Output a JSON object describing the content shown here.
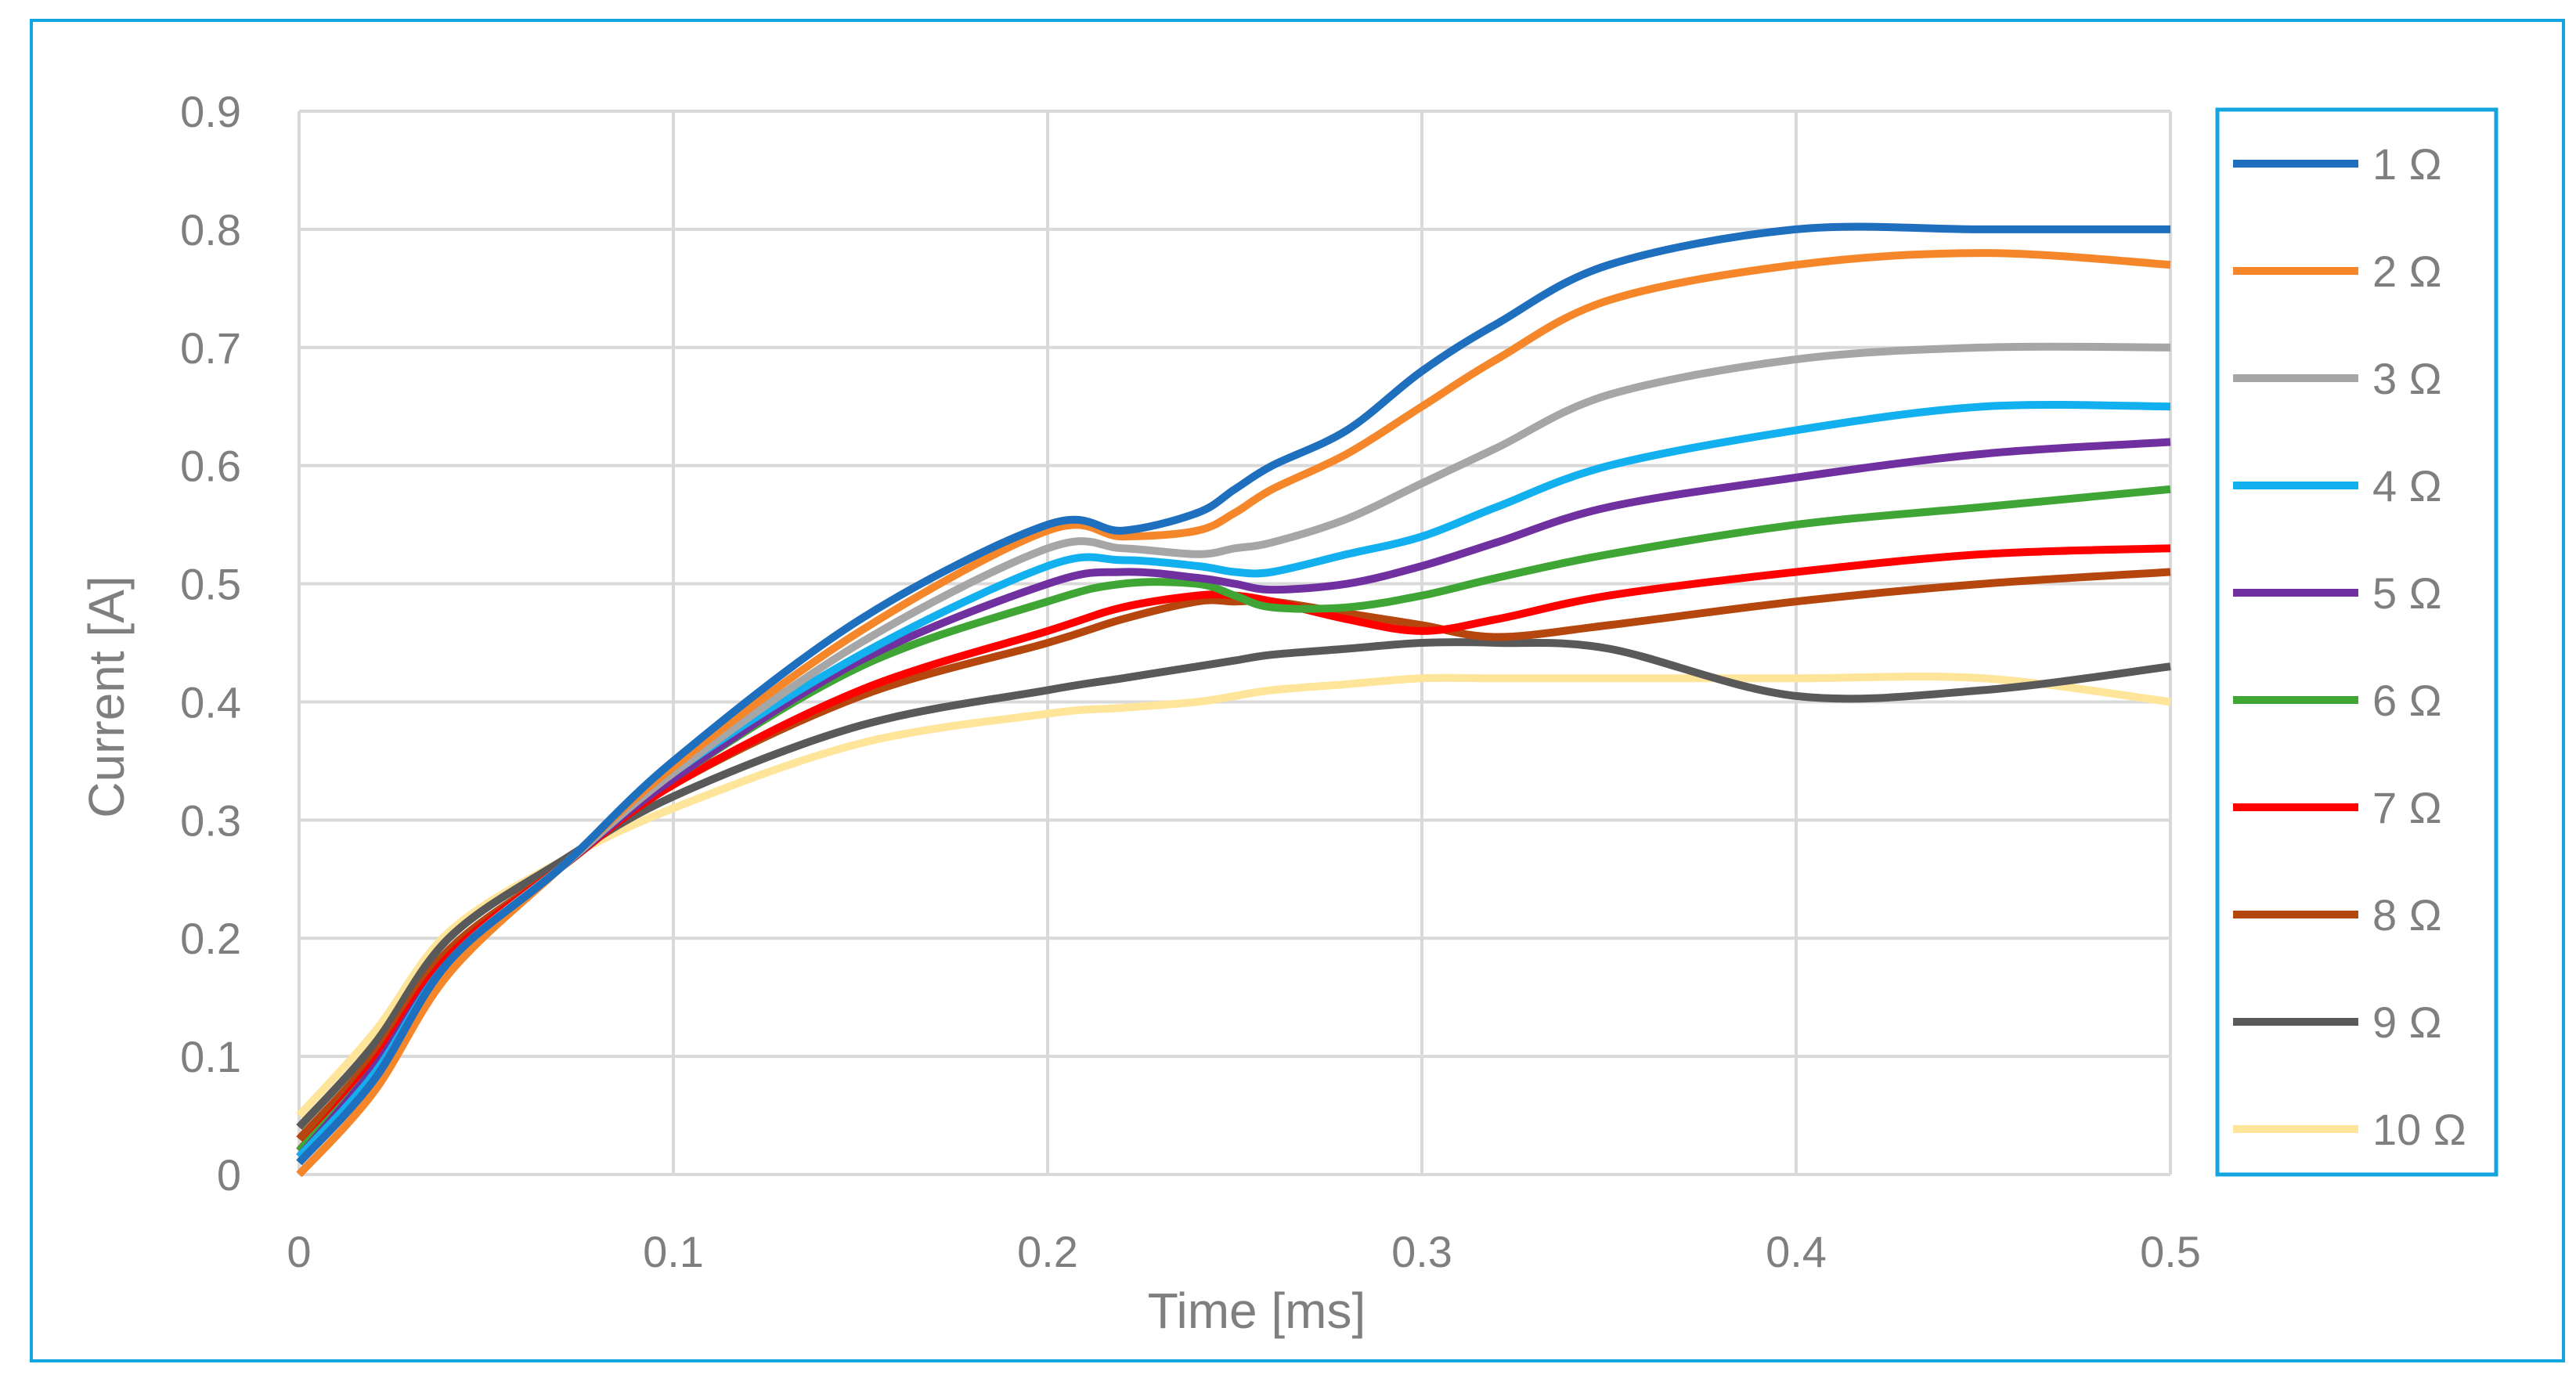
{
  "chart_data": {
    "type": "line",
    "title": "",
    "xlabel": "Time [ms]",
    "ylabel": "Current [A]",
    "xlim": [
      0,
      0.5
    ],
    "ylim": [
      0,
      0.9
    ],
    "x_ticks": [
      "0",
      "0.1",
      "0.2",
      "0.3",
      "0.4",
      "0.5"
    ],
    "y_ticks": [
      "0",
      "0.1",
      "0.2",
      "0.3",
      "0.4",
      "0.5",
      "0.6",
      "0.7",
      "0.8",
      "0.9"
    ],
    "grid": true,
    "legend_position": "right",
    "x": [
      0,
      0.02,
      0.04,
      0.07,
      0.1,
      0.15,
      0.2,
      0.22,
      0.24,
      0.25,
      0.26,
      0.28,
      0.3,
      0.32,
      0.35,
      0.4,
      0.45,
      0.5
    ],
    "series": [
      {
        "name": " 1 Ω",
        "color": "#1f6fbf",
        "values": [
          0.01,
          0.08,
          0.18,
          0.26,
          0.35,
          0.47,
          0.55,
          0.545,
          0.56,
          0.58,
          0.6,
          0.63,
          0.68,
          0.72,
          0.77,
          0.8,
          0.8,
          0.8
        ]
      },
      {
        "name": "2 Ω",
        "color": "#f5872a",
        "values": [
          0.0,
          0.07,
          0.17,
          0.26,
          0.345,
          0.46,
          0.545,
          0.54,
          0.545,
          0.56,
          0.58,
          0.61,
          0.65,
          0.69,
          0.74,
          0.77,
          0.78,
          0.77
        ]
      },
      {
        "name": "3 Ω",
        "color": "#a6a6a6",
        "values": [
          0.01,
          0.08,
          0.18,
          0.26,
          0.34,
          0.45,
          0.53,
          0.53,
          0.525,
          0.53,
          0.535,
          0.555,
          0.585,
          0.615,
          0.66,
          0.69,
          0.7,
          0.7
        ]
      },
      {
        "name": "4 Ω",
        "color": "#12b0ee",
        "values": [
          0.015,
          0.085,
          0.18,
          0.26,
          0.34,
          0.44,
          0.515,
          0.52,
          0.515,
          0.51,
          0.51,
          0.525,
          0.54,
          0.565,
          0.6,
          0.63,
          0.65,
          0.65
        ]
      },
      {
        "name": "5 Ω",
        "color": "#7030a0",
        "values": [
          0.015,
          0.09,
          0.18,
          0.26,
          0.335,
          0.435,
          0.5,
          0.51,
          0.505,
          0.5,
          0.495,
          0.5,
          0.515,
          0.535,
          0.565,
          0.59,
          0.61,
          0.62
        ]
      },
      {
        "name": "6 Ω",
        "color": "#3fa535",
        "values": [
          0.02,
          0.09,
          0.18,
          0.26,
          0.335,
          0.43,
          0.485,
          0.5,
          0.5,
          0.49,
          0.48,
          0.48,
          0.49,
          0.505,
          0.525,
          0.55,
          0.565,
          0.58
        ]
      },
      {
        "name": "7 Ω",
        "color": "#ff0000",
        "values": [
          0.02,
          0.095,
          0.185,
          0.26,
          0.33,
          0.41,
          0.46,
          0.48,
          0.49,
          0.49,
          0.485,
          0.47,
          0.46,
          0.47,
          0.49,
          0.51,
          0.525,
          0.53
        ]
      },
      {
        "name": "8 Ω",
        "color": "#b5460d",
        "values": [
          0.03,
          0.1,
          0.19,
          0.26,
          0.33,
          0.405,
          0.45,
          0.47,
          0.485,
          0.485,
          0.485,
          0.475,
          0.465,
          0.455,
          0.465,
          0.485,
          0.5,
          0.51
        ]
      },
      {
        "name": "9 Ω",
        "color": "#595959",
        "values": [
          0.04,
          0.11,
          0.2,
          0.265,
          0.32,
          0.38,
          0.41,
          0.42,
          0.43,
          0.435,
          0.44,
          0.445,
          0.45,
          0.45,
          0.445,
          0.405,
          0.41,
          0.43
        ]
      },
      {
        "name": "10 Ω",
        "color": "#ffe599",
        "values": [
          0.05,
          0.12,
          0.205,
          0.265,
          0.31,
          0.365,
          0.39,
          0.395,
          0.4,
          0.405,
          0.41,
          0.415,
          0.42,
          0.42,
          0.42,
          0.42,
          0.42,
          0.4
        ]
      }
    ]
  },
  "colors": {
    "frame": "#12a5e0",
    "legend_border": "#12a5e0",
    "grid": "#d9d9d9",
    "axis_text": "#7f7f7f"
  }
}
